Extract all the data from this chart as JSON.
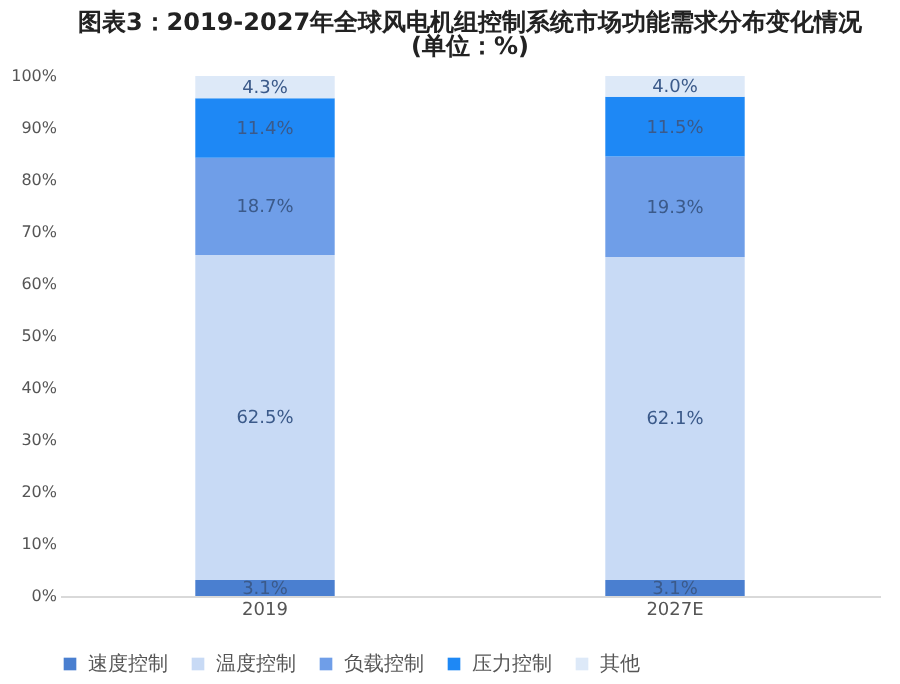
{
  "chart_data": {
    "type": "bar",
    "stacked": true,
    "title": "图表3：2019-2027年全球风电机组控制系统市场功能需求分布变化情况",
    "subtitle": "(单位：%)",
    "categories": [
      "2019",
      "2027E"
    ],
    "series": [
      {
        "name": "速度控制",
        "color": "#4a7fd0",
        "values": [
          3.1,
          3.1
        ],
        "value_labels": [
          "3.1%",
          "3.1%"
        ]
      },
      {
        "name": "温度控制",
        "color": "#c8daf5",
        "values": [
          62.5,
          62.1
        ],
        "value_labels": [
          "62.5%",
          "62.1%"
        ]
      },
      {
        "name": "负载控制",
        "color": "#6f9ee8",
        "values": [
          18.7,
          19.3
        ],
        "value_labels": [
          "18.7%",
          "19.3%"
        ]
      },
      {
        "name": "压力控制",
        "color": "#1e88f5",
        "values": [
          11.4,
          11.5
        ],
        "value_labels": [
          "11.4%",
          "11.5%"
        ]
      },
      {
        "name": "其他",
        "color": "#dde9f8",
        "values": [
          4.3,
          4.0
        ],
        "value_labels": [
          "4.3%",
          "4.0%"
        ]
      }
    ],
    "ylim": [
      0,
      100
    ],
    "yticks": [
      {
        "value": 0,
        "label": "0%"
      },
      {
        "value": 10,
        "label": "10%"
      },
      {
        "value": 20,
        "label": "20%"
      },
      {
        "value": 30,
        "label": "30%"
      },
      {
        "value": 40,
        "label": "40%"
      },
      {
        "value": 50,
        "label": "50%"
      },
      {
        "value": 60,
        "label": "60%"
      },
      {
        "value": 70,
        "label": "70%"
      },
      {
        "value": 80,
        "label": "80%"
      },
      {
        "value": 90,
        "label": "90%"
      },
      {
        "value": 100,
        "label": "100%"
      }
    ],
    "grid": false,
    "legend": "bottom"
  }
}
